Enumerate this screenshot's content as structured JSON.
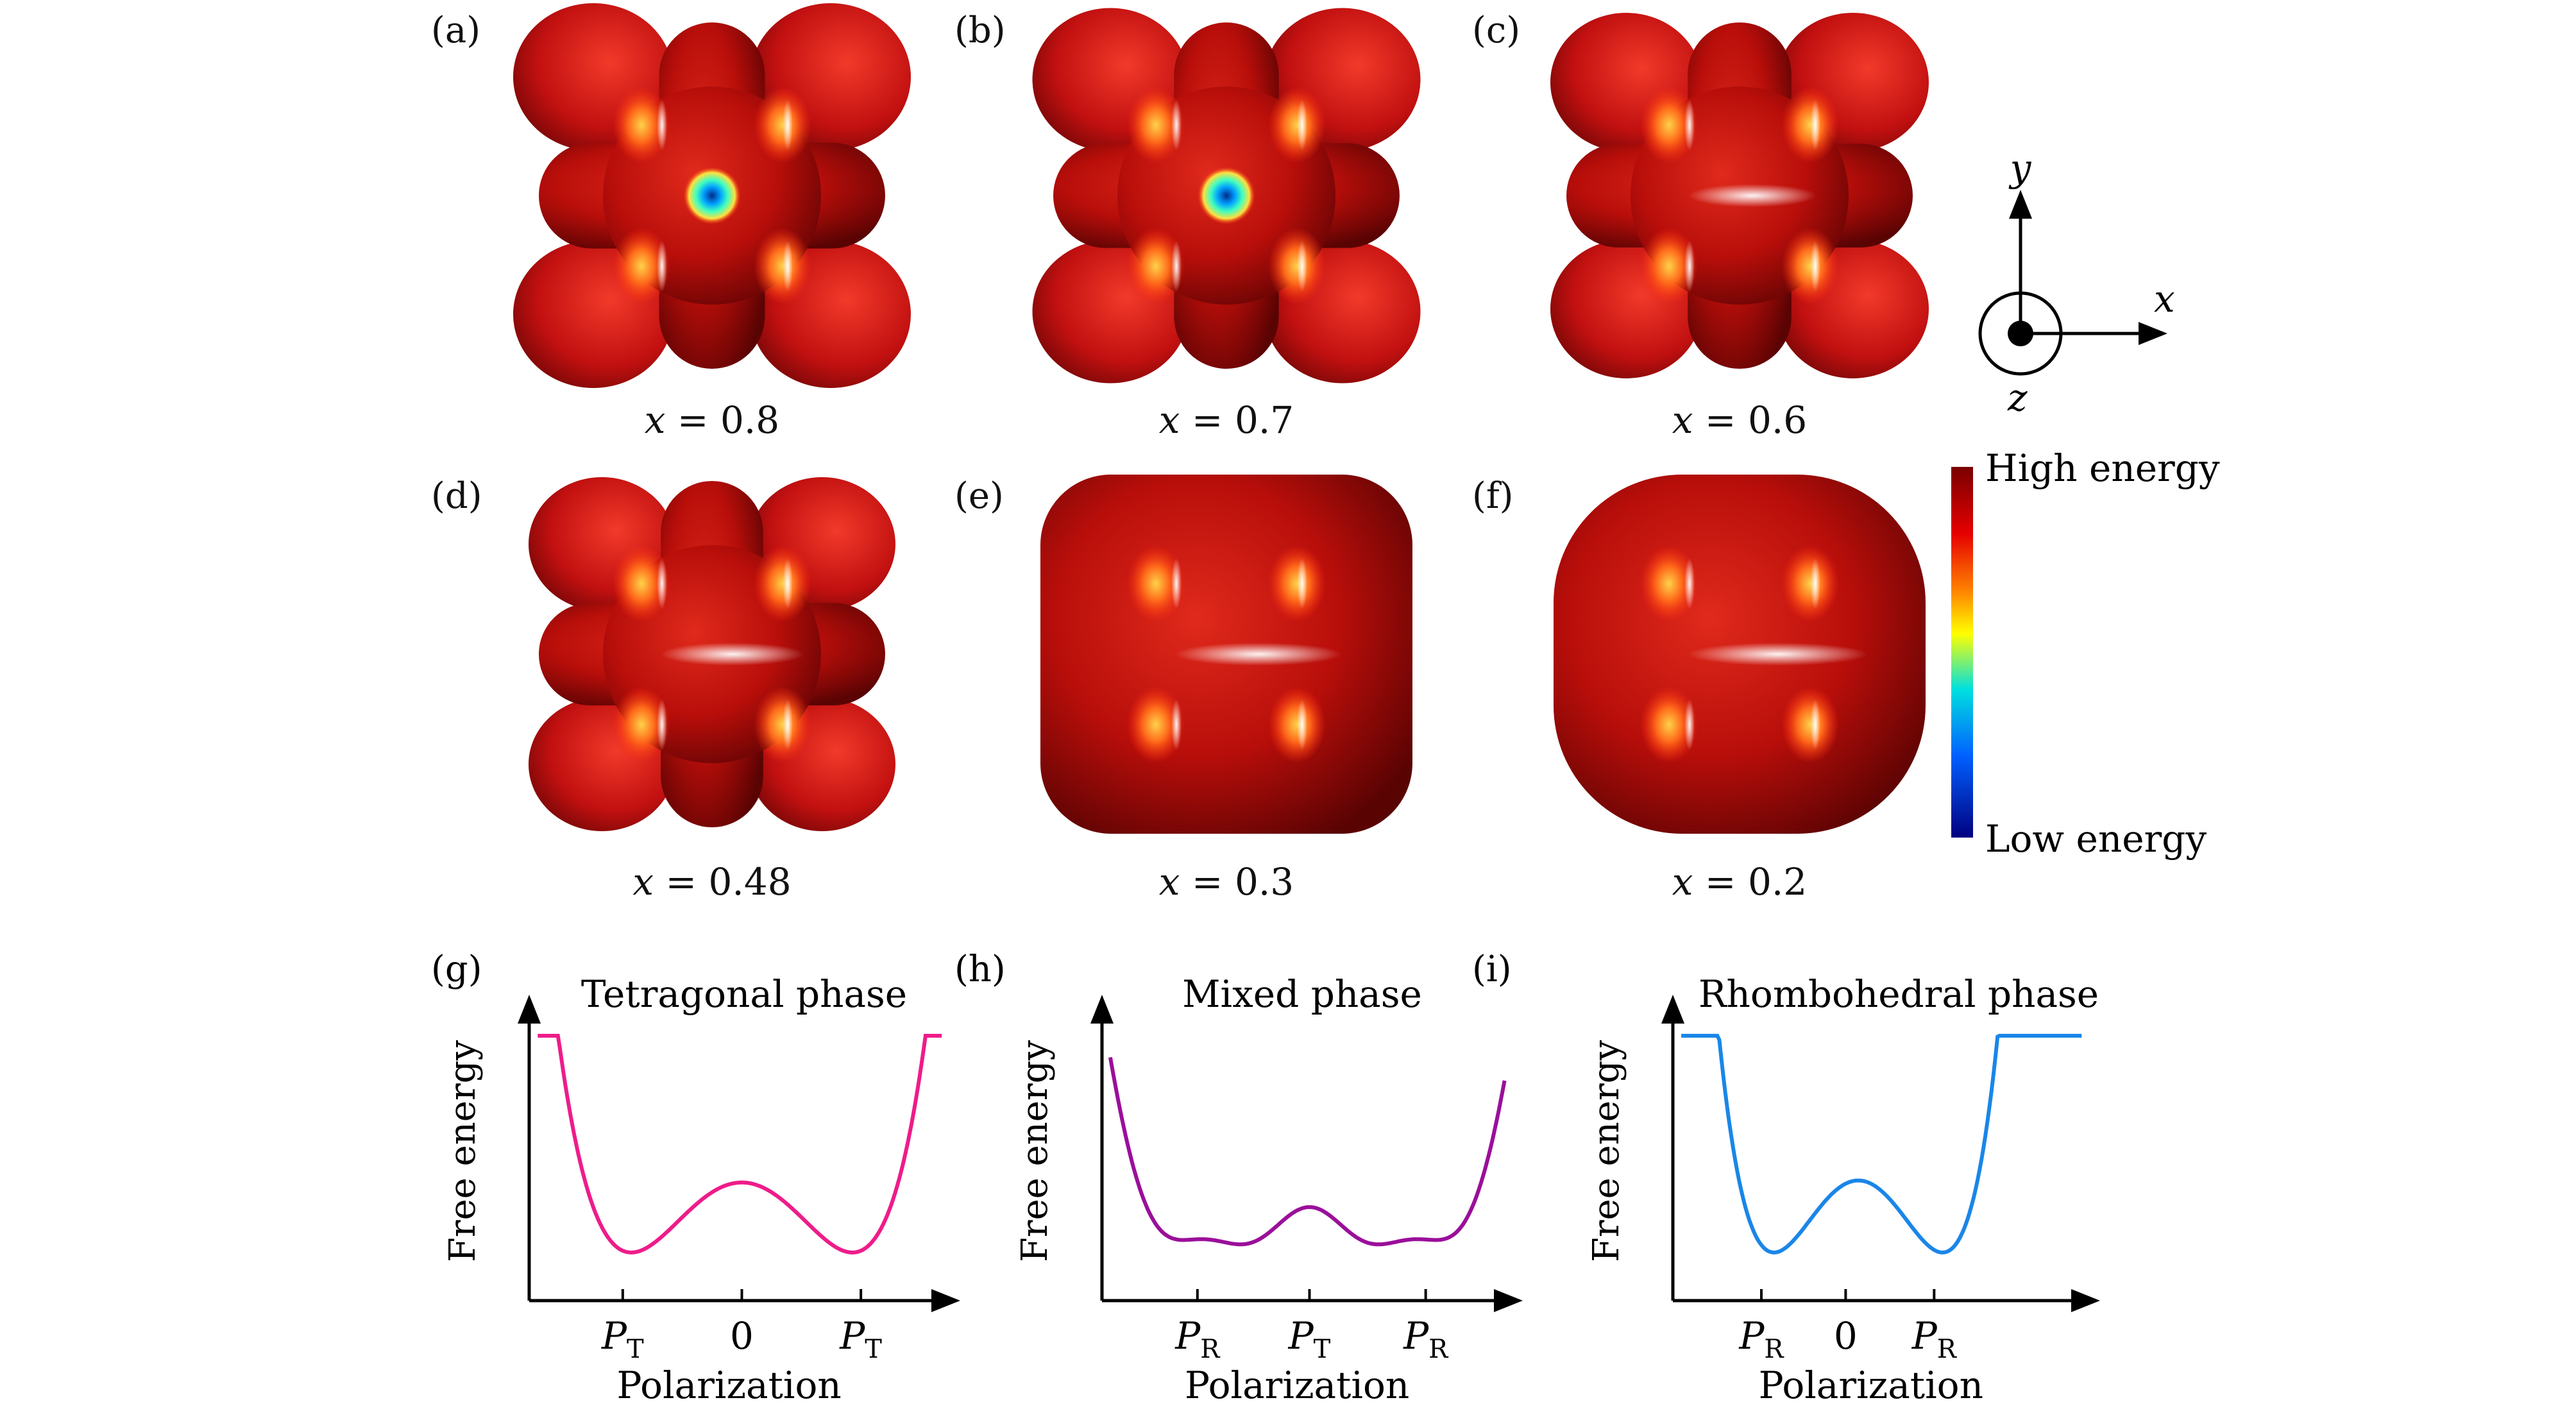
{
  "panels": [
    {
      "tag": "(a)",
      "x_label": "x",
      "x_value": "0.8",
      "level": 0.8
    },
    {
      "tag": "(b)",
      "x_label": "x",
      "x_value": "0.7",
      "level": 0.7
    },
    {
      "tag": "(c)",
      "x_label": "x",
      "x_value": "0.6",
      "level": 0.6
    },
    {
      "tag": "(d)",
      "x_label": "x",
      "x_value": "0.48",
      "level": 0.48
    },
    {
      "tag": "(e)",
      "x_label": "x",
      "x_value": "0.3",
      "level": 0.3
    },
    {
      "tag": "(f)",
      "x_label": "x",
      "x_value": "0.2",
      "level": 0.2
    }
  ],
  "axes_triad": {
    "y": "y",
    "x": "x",
    "z": "z"
  },
  "colorbar": {
    "high_label": "High energy",
    "low_label": "Low energy",
    "colors": [
      "#7a0000",
      "#e60000",
      "#ff7f00",
      "#ffff00",
      "#00e0e0",
      "#0060ff",
      "#000080"
    ]
  },
  "curves": [
    {
      "tag": "(g)",
      "title": "Tetragonal phase",
      "ylabel": "Free energy",
      "xlabel": "Polarization",
      "color": "#ee1c8a",
      "ticks": [
        {
          "label": "P",
          "sub": "T"
        },
        {
          "label": "0",
          "sub": ""
        },
        {
          "label": "P",
          "sub": "T"
        }
      ]
    },
    {
      "tag": "(h)",
      "title": "Mixed phase",
      "ylabel": "Free energy",
      "xlabel": "Polarization",
      "color": "#9a0f9a",
      "ticks": [
        {
          "label": "P",
          "sub": "R"
        },
        {
          "label": "P",
          "sub": "T"
        },
        {
          "label": "P",
          "sub": "R"
        }
      ]
    },
    {
      "tag": "(i)",
      "title": "Rhombohedral phase",
      "ylabel": "Free energy",
      "xlabel": "Polarization",
      "color": "#1a86e8",
      "ticks": [
        {
          "label": "P",
          "sub": "R"
        },
        {
          "label": "0",
          "sub": ""
        },
        {
          "label": "P",
          "sub": "R"
        }
      ]
    }
  ]
}
